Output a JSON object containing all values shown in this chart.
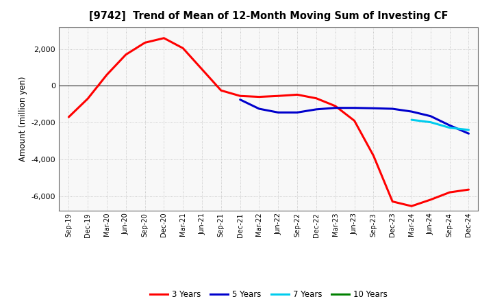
{
  "title": "[9742]  Trend of Mean of 12-Month Moving Sum of Investing CF",
  "ylabel": "Amount (million yen)",
  "background_color": "#ffffff",
  "plot_bg_color": "#f8f8f8",
  "grid_color": "#bbbbbb",
  "x_labels": [
    "Sep-19",
    "Dec-19",
    "Mar-20",
    "Jun-20",
    "Sep-20",
    "Dec-20",
    "Mar-21",
    "Jun-21",
    "Sep-21",
    "Dec-21",
    "Mar-22",
    "Jun-22",
    "Sep-22",
    "Dec-22",
    "Mar-23",
    "Jun-23",
    "Sep-23",
    "Dec-23",
    "Mar-24",
    "Jun-24",
    "Sep-24",
    "Dec-24"
  ],
  "series": {
    "3 Years": {
      "color": "#ff0000",
      "linewidth": 2.2,
      "data": [
        [
          "Sep-19",
          -1700
        ],
        [
          "Dec-19",
          -700
        ],
        [
          "Mar-20",
          600
        ],
        [
          "Jun-20",
          1700
        ],
        [
          "Sep-20",
          2350
        ],
        [
          "Dec-20",
          2600
        ],
        [
          "Mar-21",
          2050
        ],
        [
          "Jun-21",
          900
        ],
        [
          "Sep-21",
          -250
        ],
        [
          "Dec-21",
          -550
        ],
        [
          "Mar-22",
          -600
        ],
        [
          "Jun-22",
          -550
        ],
        [
          "Sep-22",
          -480
        ],
        [
          "Dec-22",
          -680
        ],
        [
          "Mar-23",
          -1100
        ],
        [
          "Jun-23",
          -1900
        ],
        [
          "Sep-23",
          -3800
        ],
        [
          "Dec-23",
          -6300
        ],
        [
          "Mar-24",
          -6550
        ],
        [
          "Jun-24",
          -6200
        ],
        [
          "Sep-24",
          -5800
        ],
        [
          "Dec-24",
          -5650
        ]
      ]
    },
    "5 Years": {
      "color": "#0000cc",
      "linewidth": 2.2,
      "data": [
        [
          "Dec-21",
          -750
        ],
        [
          "Mar-22",
          -1250
        ],
        [
          "Jun-22",
          -1450
        ],
        [
          "Sep-22",
          -1450
        ],
        [
          "Dec-22",
          -1280
        ],
        [
          "Mar-23",
          -1200
        ],
        [
          "Jun-23",
          -1200
        ],
        [
          "Sep-23",
          -1220
        ],
        [
          "Dec-23",
          -1250
        ],
        [
          "Mar-24",
          -1400
        ],
        [
          "Jun-24",
          -1650
        ],
        [
          "Sep-24",
          -2150
        ],
        [
          "Dec-24",
          -2600
        ]
      ]
    },
    "7 Years": {
      "color": "#00ccee",
      "linewidth": 2.2,
      "data": [
        [
          "Mar-24",
          -1850
        ],
        [
          "Jun-24",
          -1980
        ],
        [
          "Sep-24",
          -2280
        ],
        [
          "Dec-24",
          -2400
        ]
      ]
    },
    "10 Years": {
      "color": "#008000",
      "linewidth": 2.2,
      "data": []
    }
  },
  "ylim": [
    -6800,
    3200
  ],
  "yticks": [
    -6000,
    -4000,
    -2000,
    0,
    2000
  ],
  "legend_labels": [
    "3 Years",
    "5 Years",
    "7 Years",
    "10 Years"
  ],
  "legend_colors": [
    "#ff0000",
    "#0000cc",
    "#00ccee",
    "#008000"
  ]
}
